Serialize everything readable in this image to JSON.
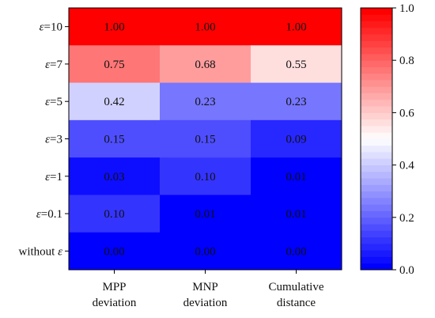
{
  "chart_data": {
    "type": "heatmap",
    "title": "",
    "xlabel": "",
    "ylabel": "",
    "x_categories": [
      [
        "MPP",
        "deviation"
      ],
      [
        "MNP",
        "deviation"
      ],
      [
        "Cumulative",
        "distance"
      ]
    ],
    "y_categories": [
      {
        "prefix": "",
        "symbol": "ε",
        "suffix": "=10"
      },
      {
        "prefix": "",
        "symbol": "ε",
        "suffix": "=7"
      },
      {
        "prefix": "",
        "symbol": "ε",
        "suffix": "=5"
      },
      {
        "prefix": "",
        "symbol": "ε",
        "suffix": "=3"
      },
      {
        "prefix": "",
        "symbol": "ε",
        "suffix": "=1"
      },
      {
        "prefix": "",
        "symbol": "ε",
        "suffix": "=0.1"
      },
      {
        "prefix": "without ",
        "symbol": "ε",
        "suffix": ""
      }
    ],
    "values": [
      [
        1.0,
        1.0,
        1.0
      ],
      [
        0.75,
        0.68,
        0.55
      ],
      [
        0.42,
        0.23,
        0.23
      ],
      [
        0.15,
        0.15,
        0.09
      ],
      [
        0.03,
        0.1,
        0.01
      ],
      [
        0.1,
        0.01,
        0.01
      ],
      [
        0.0,
        0.0,
        0.0
      ]
    ],
    "value_format_decimals": 2,
    "colormap": "bwr",
    "colormap_colors": [
      "#0000ff",
      "#ffffff",
      "#ff0000"
    ],
    "vmin": 0.0,
    "vmax": 1.0,
    "colorbar": {
      "ticks": [
        0.0,
        0.2,
        0.4,
        0.6,
        0.8,
        1.0
      ],
      "tick_labels": [
        "0.0",
        "0.2",
        "0.4",
        "0.6",
        "0.8",
        "1.0"
      ],
      "levels": 40
    }
  }
}
